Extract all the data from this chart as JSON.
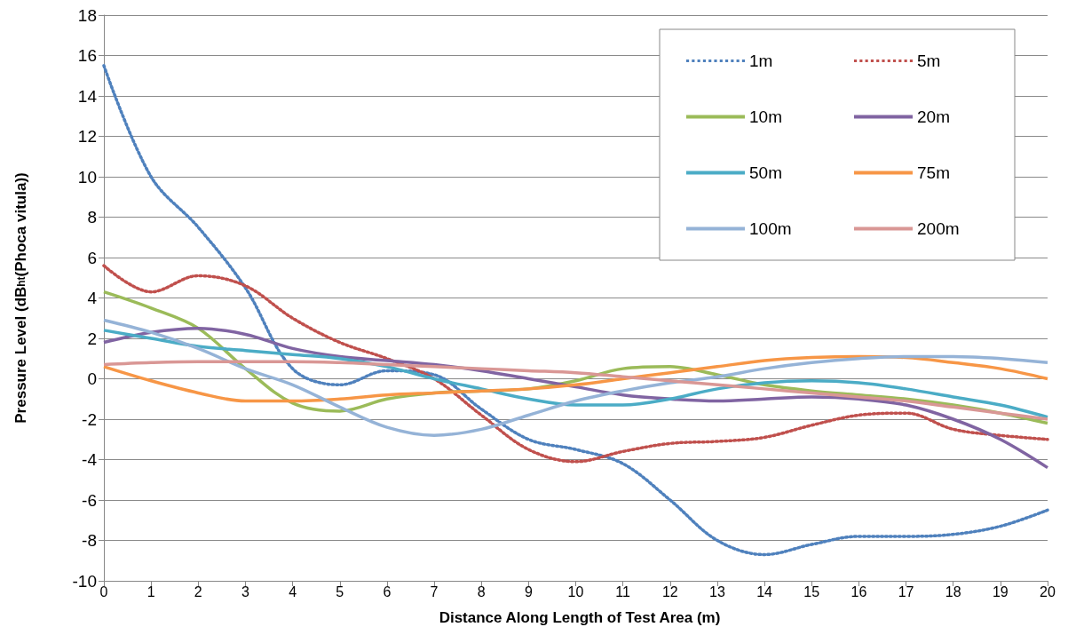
{
  "chart_data": {
    "type": "line",
    "xlabel": "Distance Along Length of Test Area (m)",
    "ylabel": "Pressure Level (dB$_{ht}$(Phoca vitula))",
    "x": [
      0,
      1,
      2,
      3,
      4,
      5,
      6,
      7,
      8,
      9,
      10,
      11,
      12,
      13,
      14,
      15,
      16,
      17,
      18,
      19,
      20
    ],
    "xlim": [
      0,
      20
    ],
    "xticks": [
      0,
      1,
      2,
      3,
      4,
      5,
      6,
      7,
      8,
      9,
      10,
      11,
      12,
      13,
      14,
      15,
      16,
      17,
      18,
      19,
      20
    ],
    "ylim": [
      -10,
      18
    ],
    "yticks": [
      -10,
      -8,
      -6,
      -4,
      -2,
      0,
      2,
      4,
      6,
      8,
      10,
      12,
      14,
      16,
      18
    ],
    "grid": "y",
    "legend": "top right",
    "marker": "none",
    "series": [
      {
        "name": "1m",
        "color": "#4f81bd",
        "line_style": "dotted",
        "values": [
          15.5,
          10,
          7.5,
          4.5,
          0.5,
          -0.3,
          0.4,
          0.2,
          -1.5,
          -3,
          -3.5,
          -4.2,
          -6,
          -8,
          -8.7,
          -8.2,
          -7.8,
          -7.8,
          -7.7,
          -7.3,
          -6.5
        ]
      },
      {
        "name": "5m",
        "color": "#c0504d",
        "line_style": "dotted",
        "values": [
          5.6,
          4.3,
          5.1,
          4.6,
          3,
          1.8,
          1,
          0,
          -1.8,
          -3.5,
          -4.1,
          -3.6,
          -3.2,
          -3.1,
          -2.9,
          -2.3,
          -1.8,
          -1.7,
          -2.5,
          -2.8,
          -3
        ]
      },
      {
        "name": "10m",
        "color": "#9bbb59",
        "line_style": "solid",
        "values": [
          4.3,
          3.5,
          2.5,
          0.5,
          -1.2,
          -1.6,
          -1,
          -0.7,
          -0.6,
          -0.5,
          -0.1,
          0.5,
          0.6,
          0.2,
          -0.3,
          -0.6,
          -0.8,
          -1,
          -1.3,
          -1.7,
          -2.2
        ]
      },
      {
        "name": "20m",
        "color": "#8064a2",
        "line_style": "solid",
        "values": [
          1.8,
          2.3,
          2.5,
          2.2,
          1.5,
          1.1,
          0.9,
          0.7,
          0.4,
          0,
          -0.4,
          -0.8,
          -1,
          -1.1,
          -1,
          -0.9,
          -1,
          -1.3,
          -2,
          -3,
          -4.4
        ]
      },
      {
        "name": "50m",
        "color": "#4bacc6",
        "line_style": "solid",
        "values": [
          2.4,
          2,
          1.6,
          1.4,
          1.2,
          1,
          0.6,
          0,
          -0.5,
          -1,
          -1.3,
          -1.3,
          -1,
          -0.5,
          -0.2,
          -0.1,
          -0.2,
          -0.5,
          -0.9,
          -1.3,
          -1.9
        ]
      },
      {
        "name": "75m",
        "color": "#f79646",
        "line_style": "solid",
        "values": [
          0.6,
          -0.1,
          -0.7,
          -1.1,
          -1.1,
          -1,
          -0.8,
          -0.7,
          -0.6,
          -0.5,
          -0.3,
          0,
          0.3,
          0.6,
          0.9,
          1.05,
          1.1,
          1.05,
          0.8,
          0.5,
          0
        ]
      },
      {
        "name": "100m",
        "color": "#95b3d7",
        "line_style": "solid",
        "values": [
          2.9,
          2.3,
          1.5,
          0.5,
          -0.3,
          -1.4,
          -2.4,
          -2.8,
          -2.5,
          -1.8,
          -1.1,
          -0.6,
          -0.2,
          0.1,
          0.5,
          0.8,
          1,
          1.1,
          1.1,
          1,
          0.8
        ]
      },
      {
        "name": "200m",
        "color": "#d99795",
        "line_style": "solid",
        "values": [
          0.7,
          0.8,
          0.85,
          0.85,
          0.85,
          0.8,
          0.7,
          0.6,
          0.5,
          0.4,
          0.3,
          0.1,
          -0.1,
          -0.3,
          -0.5,
          -0.7,
          -0.9,
          -1.1,
          -1.4,
          -1.7,
          -2
        ]
      }
    ]
  }
}
